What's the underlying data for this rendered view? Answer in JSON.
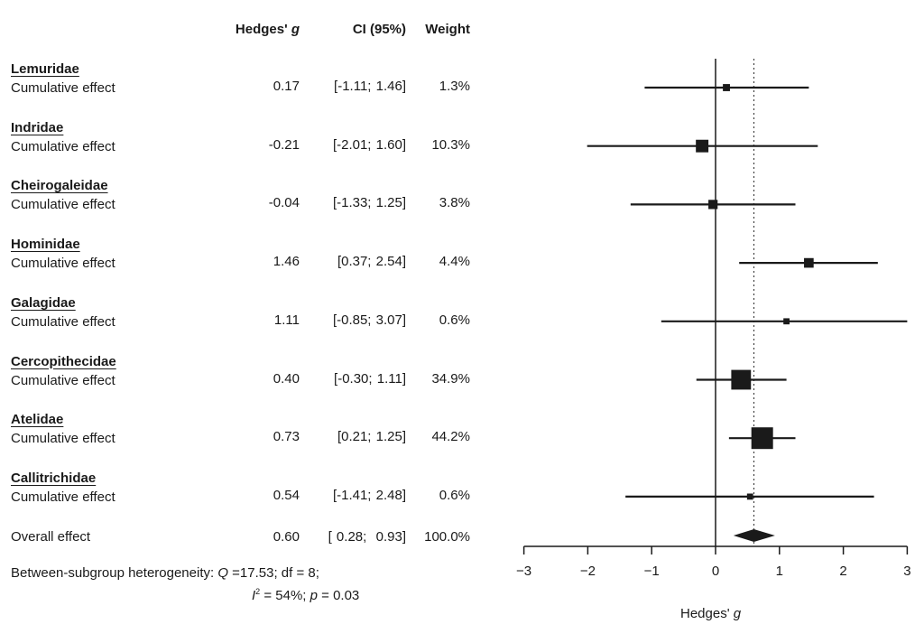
{
  "headers": {
    "hedges": "Hedges'",
    "hedges_g": "g",
    "ci": "CI (95%)",
    "weight": "Weight"
  },
  "rows": [
    {
      "group": "Lemuridae",
      "label": "Cumulative effect",
      "g": "0.17",
      "ci": "[-1.11; 1.46]",
      "weight": "1.3%"
    },
    {
      "group": "Indridae",
      "label": "Cumulative effect",
      "g": "-0.21",
      "ci": "[-2.01; 1.60]",
      "weight": "10.3%"
    },
    {
      "group": "Cheirogaleidae",
      "label": "Cumulative effect",
      "g": "-0.04",
      "ci": "[-1.33; 1.25]",
      "weight": "3.8%"
    },
    {
      "group": "Hominidae",
      "label": "Cumulative effect",
      "g": "1.46",
      "ci": "[0.37; 2.54]",
      "weight": "4.4%"
    },
    {
      "group": "Galagidae",
      "label": "Cumulative effect",
      "g": "1.11",
      "ci": "[-0.85; 3.07]",
      "weight": "0.6%"
    },
    {
      "group": "Cercopithecidae",
      "label": "Cumulative effect",
      "g": "0.40",
      "ci": "[-0.30; 1.11]",
      "weight": "34.9%"
    },
    {
      "group": "Atelidae",
      "label": "Cumulative effect",
      "g": "0.73",
      "ci": "[0.21; 1.25]",
      "weight": "44.2%"
    },
    {
      "group": "Callitrichidae",
      "label": "Cumulative effect",
      "g": "0.54",
      "ci": "[-1.41; 2.48]",
      "weight": "0.6%"
    }
  ],
  "overall": {
    "label": "Overall effect",
    "g": "0.60",
    "ci": "[ 0.28;  0.93]",
    "weight": "100.0%"
  },
  "heterogeneity": {
    "line1_prefix": "Between-subgroup heterogeneity: ",
    "q_symbol": "Q",
    "line1_rest": " =17.53; df = 8;",
    "i_symbol": "I",
    "i_sup": "2",
    "line2_mid": " = 54%; ",
    "p_symbol": "p",
    "line2_end": " = 0.03"
  },
  "chart_data": {
    "type": "forest",
    "xlabel": "Hedges'",
    "xlabel_italic": "g",
    "xlim": [
      -3,
      3
    ],
    "x_ticks": [
      -3,
      -2,
      -1,
      0,
      1,
      2,
      3
    ],
    "x_tick_labels": [
      "−3",
      "−2",
      "−1",
      "0",
      "1",
      "2",
      "3"
    ],
    "overall_reference_line": 0.6,
    "studies": [
      {
        "name": "Lemuridae",
        "estimate": 0.17,
        "lower": -1.11,
        "upper": 1.46,
        "weight": 1.3
      },
      {
        "name": "Indridae",
        "estimate": -0.21,
        "lower": -2.01,
        "upper": 1.6,
        "weight": 10.3
      },
      {
        "name": "Cheirogaleidae",
        "estimate": -0.04,
        "lower": -1.33,
        "upper": 1.25,
        "weight": 3.8
      },
      {
        "name": "Hominidae",
        "estimate": 1.46,
        "lower": 0.37,
        "upper": 2.54,
        "weight": 4.4
      },
      {
        "name": "Galagidae",
        "estimate": 1.11,
        "lower": -0.85,
        "upper": 3.07,
        "weight": 0.6
      },
      {
        "name": "Cercopithecidae",
        "estimate": 0.4,
        "lower": -0.3,
        "upper": 1.11,
        "weight": 34.9
      },
      {
        "name": "Atelidae",
        "estimate": 0.73,
        "lower": 0.21,
        "upper": 1.25,
        "weight": 44.2
      },
      {
        "name": "Callitrichidae",
        "estimate": 0.54,
        "lower": -1.41,
        "upper": 2.48,
        "weight": 0.6
      }
    ],
    "overall": {
      "estimate": 0.6,
      "lower": 0.28,
      "upper": 0.93
    }
  }
}
